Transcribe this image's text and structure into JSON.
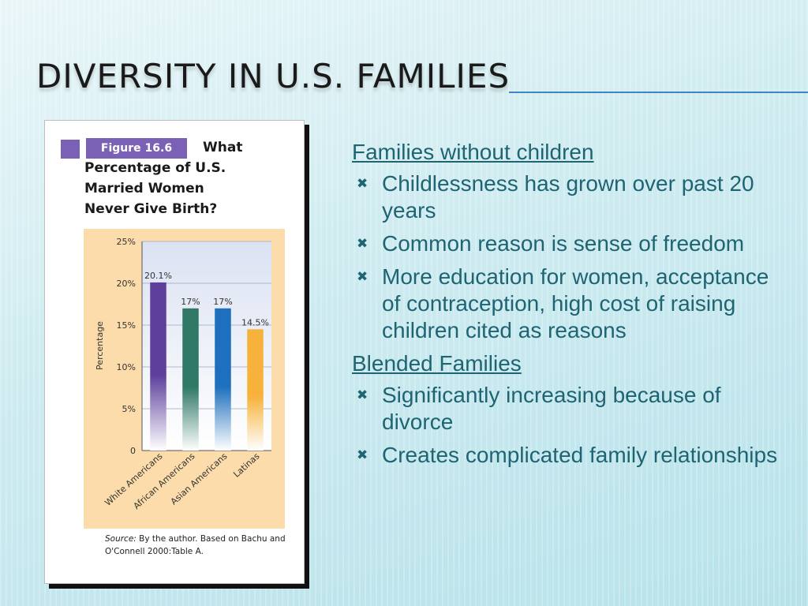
{
  "slide": {
    "title": "Diversity in U.S. Families"
  },
  "figure": {
    "label": "Figure 16.6",
    "title_lines": [
      "What",
      "Percentage of U.S.",
      "Married Women",
      "Never Give Birth?"
    ],
    "source_tag": "Source:",
    "source_text": " By the author. Based on Bachu and O'Connell 2000:Table A.",
    "colors": {
      "label_bg": "#7b61b5",
      "panel_bg": "#fcdcaa",
      "plot_bg_top": "#dbe2f2",
      "plot_bg_bottom": "#ffffff"
    }
  },
  "chart_data": {
    "type": "bar",
    "ylabel": "Percentage",
    "ylim": [
      0,
      25
    ],
    "yticks": [
      "0",
      "5%",
      "10%",
      "15%",
      "20%",
      "25%"
    ],
    "ytick_values": [
      0,
      5,
      10,
      15,
      20,
      25
    ],
    "categories": [
      "White Americans",
      "African Americans",
      "Asian Americans",
      "Latinas"
    ],
    "values": [
      20.1,
      17,
      17,
      14.5
    ],
    "data_labels": [
      "20.1%",
      "17%",
      "17%",
      "14.5%"
    ],
    "bar_colors": [
      "#5e3f9c",
      "#2f7866",
      "#1e6fbd",
      "#f6b23b"
    ],
    "grid": true
  },
  "content": {
    "sections": [
      {
        "heading": "Families without children",
        "bullets": [
          "Childlessness has grown over past 20 years",
          "Common reason is sense of freedom",
          "More education for women, acceptance of contraception, high cost of raising children cited as reasons"
        ]
      },
      {
        "heading": "Blended Families",
        "bullets": [
          "Significantly increasing because of divorce",
          "Creates complicated family relationships"
        ]
      }
    ],
    "bullet_icon": "cross-mark-icon",
    "bullet_glyph": "✖",
    "text_color": "#1f6472"
  },
  "theme": {
    "title_color": "#1a1a1a",
    "rule_color": "#3c86c6"
  }
}
